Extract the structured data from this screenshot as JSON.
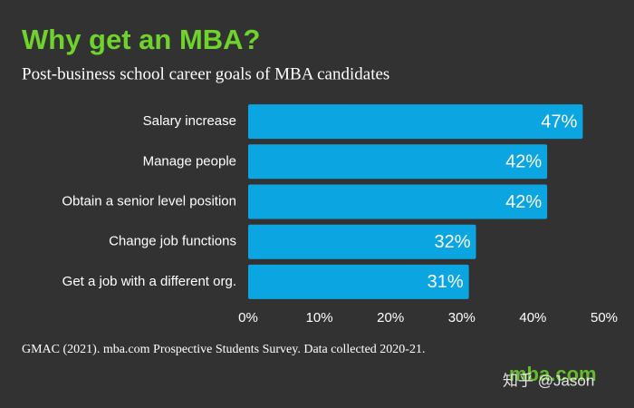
{
  "chart_data": {
    "type": "bar",
    "orientation": "horizontal",
    "title": "Why get an MBA?",
    "subtitle": "Post-business school career goals of MBA candidates",
    "categories": [
      "Salary increase",
      "Manage people",
      "Obtain a senior level position",
      "Change job functions",
      "Get a job with a different org."
    ],
    "values": [
      47,
      42,
      42,
      32,
      31
    ],
    "value_labels": [
      "47%",
      "42%",
      "42%",
      "32%",
      "31%"
    ],
    "color": "#0ba6e1",
    "xlim": [
      0,
      50
    ],
    "xticks": [
      {
        "value": 0,
        "label": "0%"
      },
      {
        "value": 10,
        "label": "10%"
      },
      {
        "value": 20,
        "label": "20%"
      },
      {
        "value": 30,
        "label": "30%"
      },
      {
        "value": 40,
        "label": "40%"
      },
      {
        "value": 50,
        "label": "50%"
      }
    ],
    "grid": false,
    "source": "GMAC (2021). mba.com Prospective Students Survey. Data collected 2020-21.",
    "logo": "mba.com",
    "watermark": "知乎 @Jason"
  }
}
